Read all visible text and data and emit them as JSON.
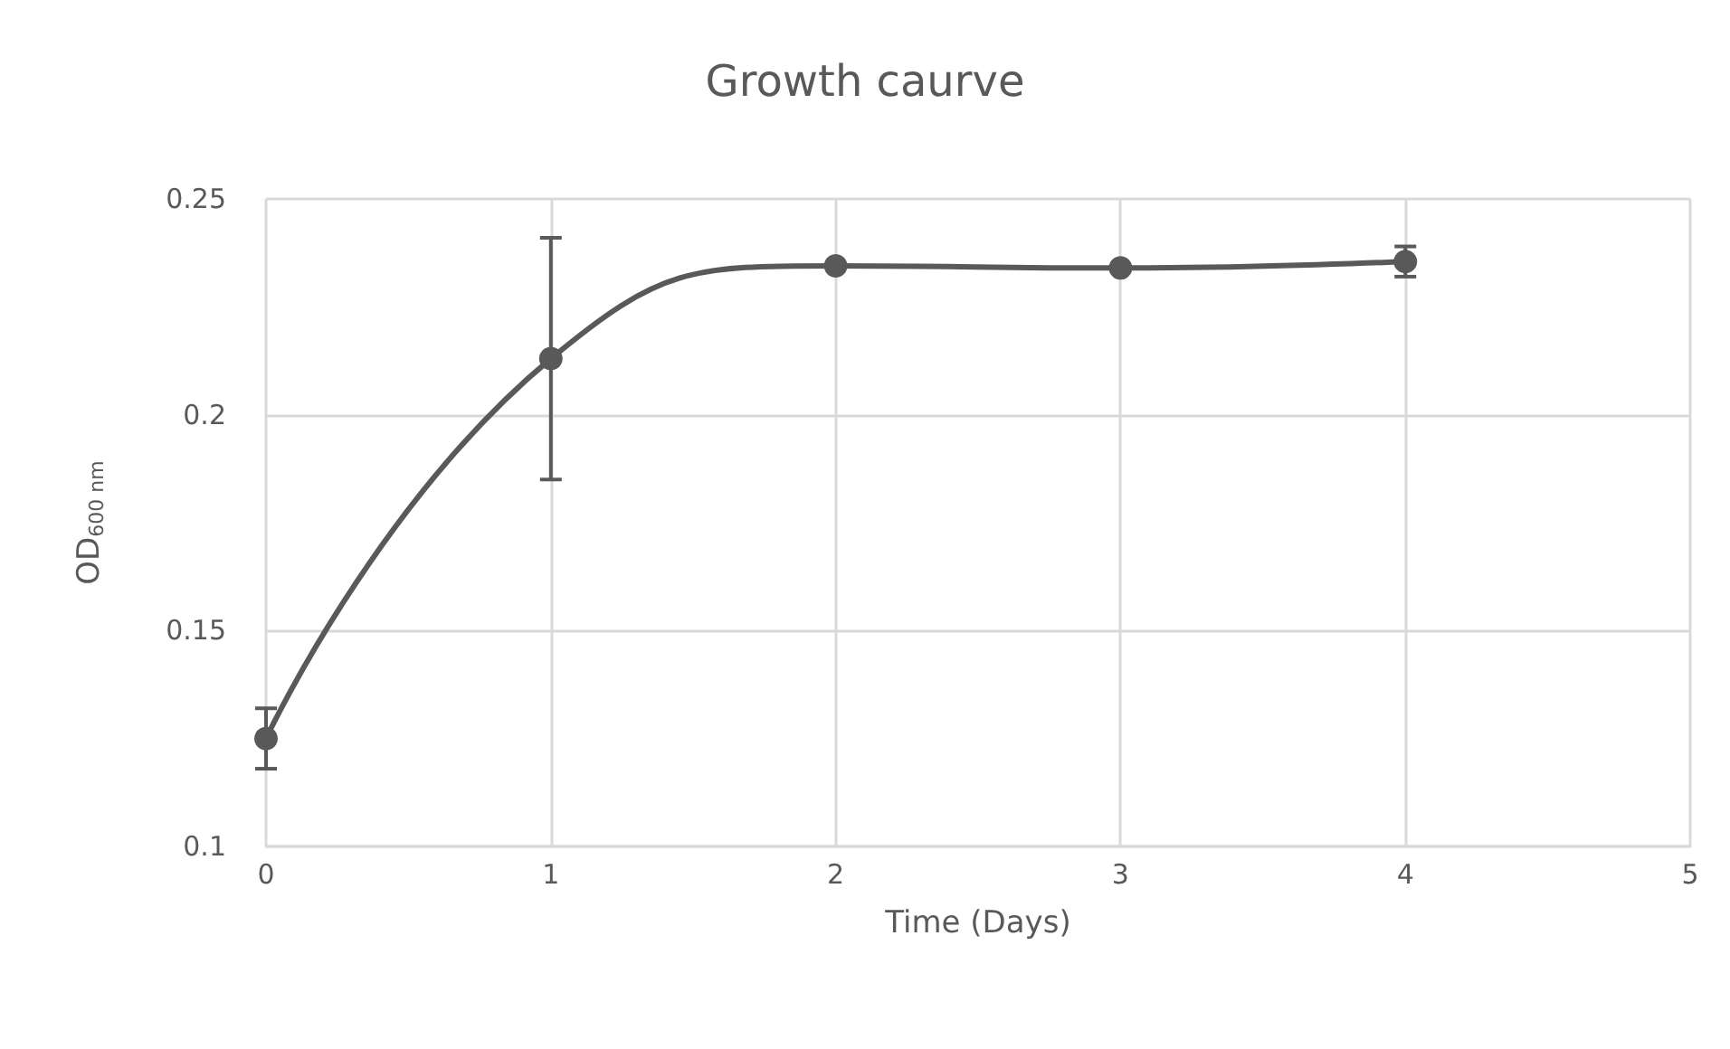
{
  "chart_data": {
    "type": "line",
    "title": "Growth caurve",
    "xlabel": "Time (Days)",
    "ylabel": "OD$_{600 nm}$",
    "x": [
      0,
      1,
      2,
      3,
      4
    ],
    "series": [
      {
        "color": "#595959",
        "values": [
          0.125,
          0.213,
          0.2345,
          0.234,
          0.2355
        ],
        "errors": [
          0.007,
          0.028,
          null,
          null,
          0.0035
        ]
      }
    ],
    "xlim": [
      0,
      5
    ],
    "xticks": [
      0,
      1,
      2,
      3,
      4,
      5
    ],
    "ylim": [
      0.1,
      0.25
    ],
    "yticks": [
      0.1,
      0.15,
      0.2,
      0.25
    ],
    "grid": true,
    "marker": "circle",
    "line_style": "solid"
  }
}
